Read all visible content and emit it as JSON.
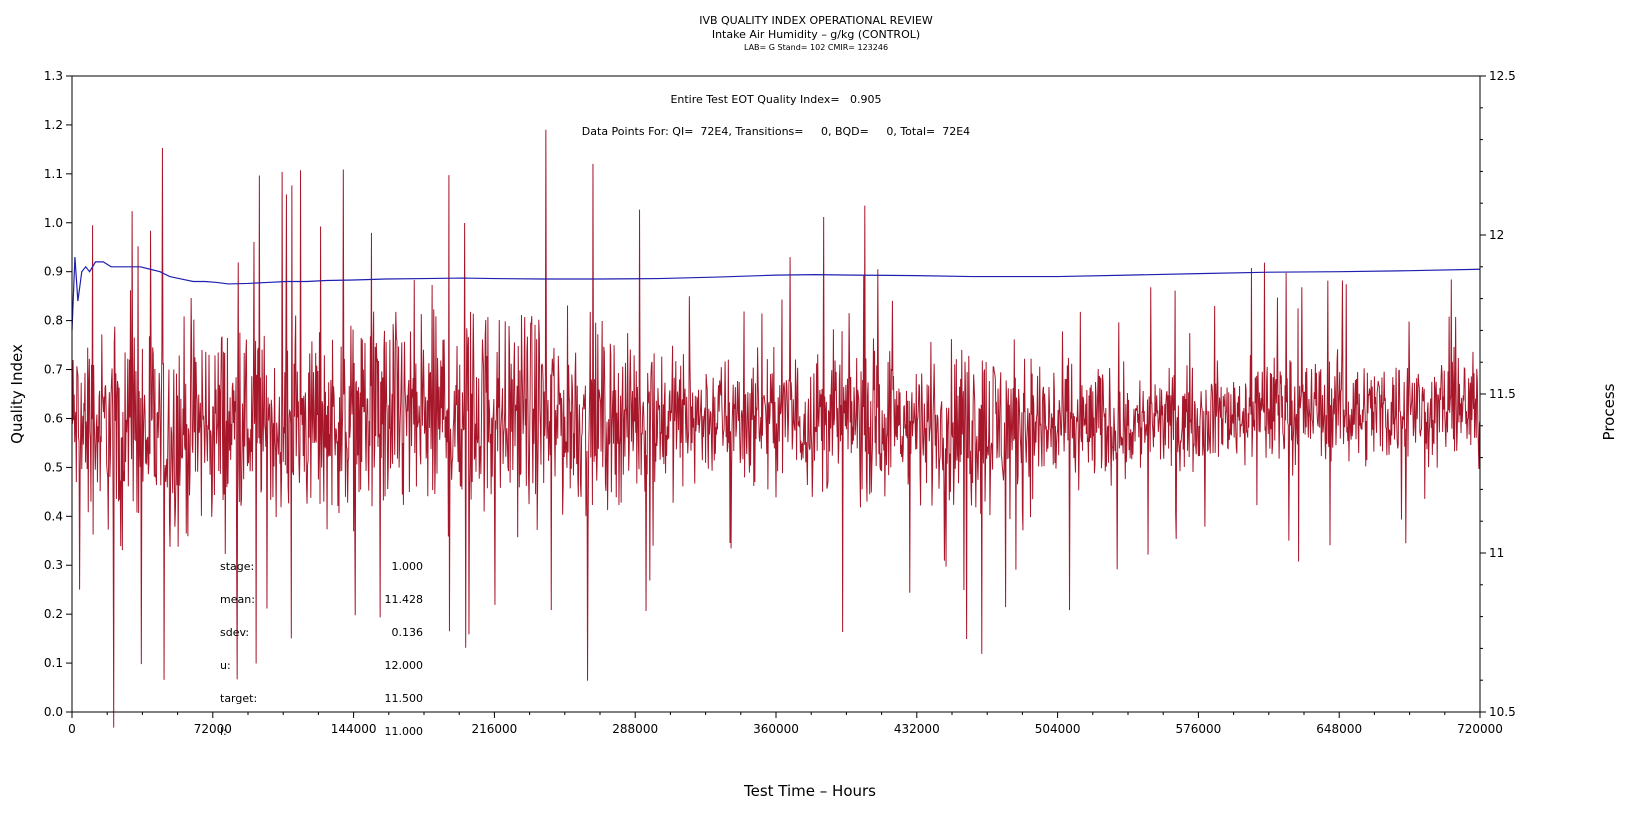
{
  "chart_data": {
    "type": "line",
    "title": "IVB QUALITY INDEX OPERATIONAL REVIEW",
    "subtitle": "Intake Air Humidity – g/kg (CONTROL)",
    "subtitle2": "LAB= G Stand= 102 CMIR= 123246",
    "xlabel": "Test Time – Hours",
    "ylabel_left": "Quality Index",
    "ylabel_right": "Process",
    "xlim": [
      0,
      720000
    ],
    "ylim_left": [
      0,
      1.3
    ],
    "ylim_right": [
      10.5,
      12.5
    ],
    "x_ticks": [
      "0",
      "72000",
      "144000",
      "216000",
      "288000",
      "360000",
      "432000",
      "504000",
      "576000",
      "648000",
      "720000"
    ],
    "y_left_ticks": [
      "0.0",
      "0.1",
      "0.2",
      "0.3",
      "0.4",
      "0.5",
      "0.6",
      "0.7",
      "0.8",
      "0.9",
      "1.0",
      "1.1",
      "1.2",
      "1.3"
    ],
    "y_right_ticks": [
      "10.5",
      "11",
      "11.5",
      "12",
      "12.5"
    ],
    "annotation_line1": "Entire Test EOT Quality Index=   0.905",
    "annotation_line2": "Data Points For: QI=  72E4, Transitions=     0, BQD=     0, Total=  72E4",
    "grid": false,
    "series": [
      {
        "axis": "right",
        "color": "#a8162a",
        "x": [
          0,
          720000
        ],
        "y_range_envelope": {
          "x": [
            0,
            36000,
            72000,
            108000,
            144000,
            180000,
            216000,
            252000,
            288000,
            324000,
            360000,
            396000,
            432000,
            468000,
            504000,
            540000,
            576000,
            612000,
            648000,
            684000,
            720000
          ],
          "low": [
            11.15,
            11.05,
            11.1,
            11.15,
            11.15,
            11.1,
            11.15,
            11.15,
            11.2,
            11.25,
            11.25,
            11.2,
            11.2,
            11.15,
            11.2,
            11.25,
            11.3,
            11.3,
            11.3,
            11.3,
            11.3
          ],
          "high": [
            11.65,
            11.7,
            11.7,
            11.65,
            11.7,
            11.75,
            11.75,
            11.7,
            11.65,
            11.6,
            11.6,
            11.65,
            11.6,
            11.65,
            11.6,
            11.55,
            11.55,
            11.6,
            11.6,
            11.6,
            11.6
          ]
        }
      },
      {
        "axis": "left",
        "color": "#2020b0",
        "x": [
          0,
          1500,
          3000,
          5000,
          7000,
          9000,
          12000,
          16000,
          20000,
          25000,
          30000,
          35000,
          40000,
          45000,
          50000,
          56000,
          62000,
          68000,
          74000,
          80000,
          90000,
          100000,
          110000,
          120000,
          130000,
          144000,
          160000,
          180000,
          200000,
          216000,
          240000,
          270000,
          300000,
          330000,
          360000,
          380000,
          400000,
          432000,
          460000,
          480000,
          504000,
          540000,
          576000,
          612000,
          648000,
          684000,
          720000
        ],
        "y": [
          0.78,
          0.93,
          0.84,
          0.9,
          0.91,
          0.9,
          0.92,
          0.92,
          0.91,
          0.91,
          0.91,
          0.91,
          0.905,
          0.9,
          0.89,
          0.885,
          0.88,
          0.88,
          0.878,
          0.875,
          0.876,
          0.878,
          0.88,
          0.88,
          0.882,
          0.883,
          0.885,
          0.886,
          0.887,
          0.886,
          0.885,
          0.885,
          0.886,
          0.889,
          0.893,
          0.894,
          0.893,
          0.892,
          0.89,
          0.89,
          0.89,
          0.893,
          0.896,
          0.899,
          0.9,
          0.902,
          0.905
        ]
      }
    ],
    "stats": [
      {
        "label": "stage:",
        "value": "1.000"
      },
      {
        "label": "mean:",
        "value": "11.428"
      },
      {
        "label": "sdev:",
        "value": "0.136"
      },
      {
        "label": "u:",
        "value": "12.000"
      },
      {
        "label": "target:",
        "value": "11.500"
      },
      {
        "label": "l:",
        "value": "11.000"
      }
    ]
  }
}
